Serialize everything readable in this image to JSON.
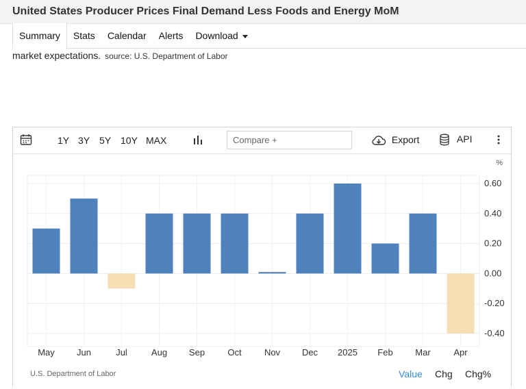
{
  "header": {
    "title": "United States Producer Prices Final Demand Less Foods and Energy MoM"
  },
  "tabs": [
    {
      "label": "Summary"
    },
    {
      "label": "Stats"
    },
    {
      "label": "Calendar"
    },
    {
      "label": "Alerts"
    },
    {
      "label": "Download"
    }
  ],
  "description": {
    "text": "market expectations.",
    "source": "source: U.S. Department of Labor"
  },
  "toolbar": {
    "ranges": [
      "1Y",
      "3Y",
      "5Y",
      "10Y",
      "MAX"
    ],
    "compare_placeholder": "Compare +",
    "export_label": "Export",
    "api_label": "API"
  },
  "chart_footer": {
    "source": "U.S. Department of Labor",
    "tabs": [
      {
        "label": "Value",
        "color": "#2e8be6"
      },
      {
        "label": "Chg",
        "color": "#222222"
      },
      {
        "label": "Chg%",
        "color": "#222222"
      }
    ]
  },
  "colors": {
    "positive": "#4f81bd",
    "negative": "#f5deb3"
  },
  "chart_data": {
    "type": "bar",
    "unit": "%",
    "categories": [
      "May",
      "Jun",
      "Jul",
      "Aug",
      "Sep",
      "Oct",
      "Nov",
      "Dec",
      "2025",
      "Feb",
      "Mar",
      "Apr"
    ],
    "values": [
      0.3,
      0.5,
      -0.1,
      0.4,
      0.4,
      0.4,
      0.01,
      0.4,
      0.6,
      0.2,
      0.4,
      -0.4
    ],
    "y_ticks": [
      "0.60",
      "0.40",
      "0.20",
      "0.00",
      "-0.20",
      "-0.40"
    ],
    "ylim": [
      -0.4,
      0.6
    ],
    "grid": true
  }
}
